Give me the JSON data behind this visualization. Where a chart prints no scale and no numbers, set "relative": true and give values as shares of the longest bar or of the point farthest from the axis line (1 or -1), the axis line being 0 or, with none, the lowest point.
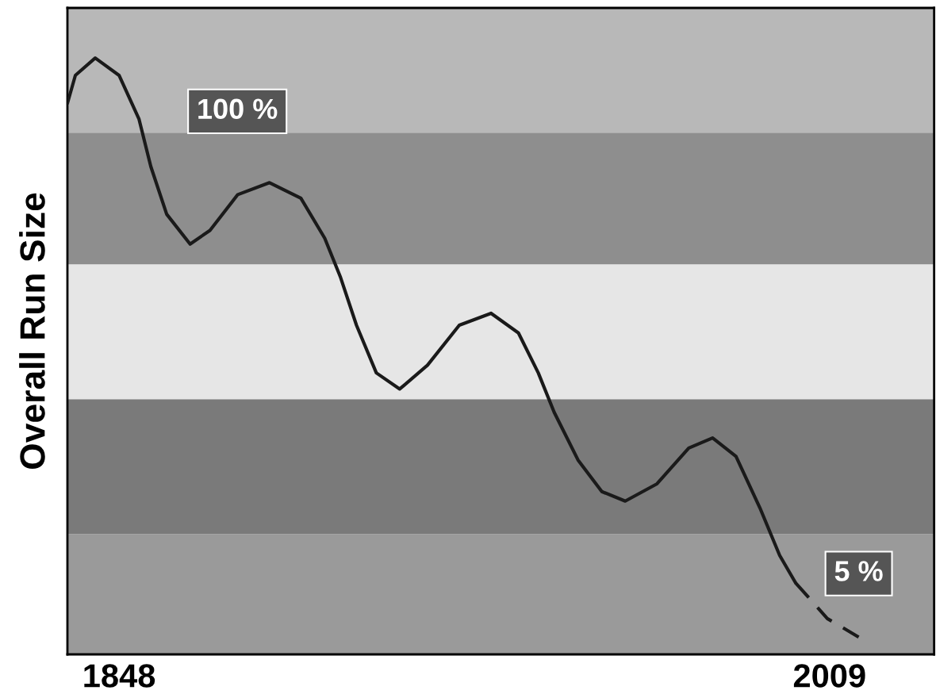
{
  "chart_data": {
    "type": "line",
    "relative": true,
    "ylabel": "Overall Run Size",
    "x": [
      1836.3,
      1838.1,
      1842.6,
      1848,
      1852.5,
      1855.2,
      1858.8,
      1864.1,
      1868.6,
      1874.9,
      1882.1,
      1889.2,
      1894.6,
      1898.2,
      1901.8,
      1906.3,
      1911.6,
      1917.9,
      1925.1,
      1932.3,
      1938.5,
      1943.0,
      1946.6,
      1952.0,
      1957.4,
      1962.7,
      1969.9,
      1977.1,
      1982.5,
      1987.8,
      1993.2,
      1997.7,
      2001.3
    ],
    "xlim": [
      1836.3,
      2032.7
    ],
    "xticks": [
      1848,
      2009
    ],
    "tick_labels": "x",
    "grid": false,
    "legend": false,
    "series": [
      {
        "color": "#1a1a1a",
        "line_style": "solid",
        "values": [
          0.924,
          0.971,
          1,
          0.971,
          0.898,
          0.818,
          0.738,
          0.688,
          0.711,
          0.771,
          0.791,
          0.765,
          0.698,
          0.632,
          0.552,
          0.472,
          0.445,
          0.485,
          0.552,
          0.572,
          0.539,
          0.472,
          0.406,
          0.326,
          0.273,
          0.257,
          0.286,
          0.346,
          0.363,
          0.332,
          0.246,
          0.166,
          0.12
        ]
      },
      {
        "color": "#1a1a1a",
        "line_style": "dashed",
        "x": [
          2001.3,
          2008.5,
          2015.6
        ],
        "values": [
          0.12,
          0.06,
          0.029
        ]
      }
    ],
    "annotations": [
      "100 %",
      "5 %"
    ]
  }
}
